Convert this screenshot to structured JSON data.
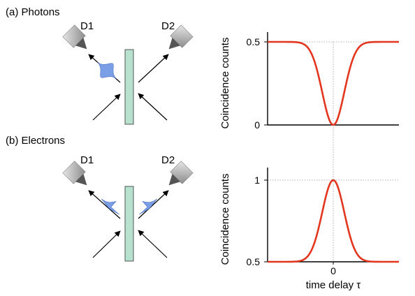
{
  "panels": [
    {
      "id": "a",
      "label": "(a) Photons",
      "detector1": "D1",
      "detector2": "D2",
      "wavepacket": "photon",
      "colors": {
        "beamsplitter": "#b6e1cf",
        "wavepacket": "#7a9fe6",
        "detector": "#a3a3a3",
        "curve": "#e2361f"
      }
    },
    {
      "id": "b",
      "label": "(b) Electrons",
      "detector1": "D1",
      "detector2": "D2",
      "wavepacket": "electron",
      "colors": {
        "beamsplitter": "#b6e1cf",
        "wavepacket": "#7a9fe6",
        "detector": "#a3a3a3",
        "curve": "#e2361f"
      }
    }
  ],
  "chart_data": [
    {
      "type": "line",
      "ylabel": "Coincidence counts",
      "xlabel": "",
      "ylim": [
        0,
        0.5
      ],
      "yticks": [
        "0.5",
        "0"
      ],
      "xrange": [
        -4,
        4
      ],
      "reference_line_y": 0.5,
      "series": [
        {
          "shape": "gaussian-dip",
          "baseline": 0.5,
          "extremum": 0,
          "x_center": 0,
          "width": 1
        }
      ]
    },
    {
      "type": "line",
      "ylabel": "Coincidence counts",
      "xlabel": "time delay τ",
      "ylim": [
        0.5,
        1
      ],
      "yticks": [
        "1",
        "0.5"
      ],
      "xticks": [
        "0"
      ],
      "xrange": [
        -4,
        4
      ],
      "reference_line_y": 1,
      "series": [
        {
          "shape": "gaussian-peak",
          "baseline": 0.5,
          "extremum": 1,
          "x_center": 0,
          "width": 1
        }
      ]
    }
  ]
}
